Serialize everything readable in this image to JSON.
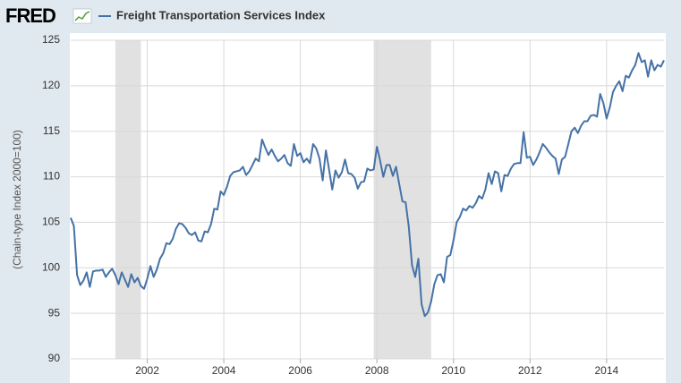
{
  "logo": "FRED",
  "chart_data": {
    "type": "line",
    "y_label": "(Chain-type Index 2000=100)",
    "x": [
      2000,
      2000.083,
      2000.167,
      2000.25,
      2000.333,
      2000.417,
      2000.5,
      2000.583,
      2000.667,
      2000.75,
      2000.833,
      2000.917,
      2001,
      2001.083,
      2001.167,
      2001.25,
      2001.333,
      2001.417,
      2001.5,
      2001.583,
      2001.667,
      2001.75,
      2001.833,
      2001.917,
      2002,
      2002.083,
      2002.167,
      2002.25,
      2002.333,
      2002.417,
      2002.5,
      2002.583,
      2002.667,
      2002.75,
      2002.833,
      2002.917,
      2003,
      2003.083,
      2003.167,
      2003.25,
      2003.333,
      2003.417,
      2003.5,
      2003.583,
      2003.667,
      2003.75,
      2003.833,
      2003.917,
      2004,
      2004.083,
      2004.167,
      2004.25,
      2004.333,
      2004.417,
      2004.5,
      2004.583,
      2004.667,
      2004.75,
      2004.833,
      2004.917,
      2005,
      2005.083,
      2005.167,
      2005.25,
      2005.333,
      2005.417,
      2005.5,
      2005.583,
      2005.667,
      2005.75,
      2005.833,
      2005.917,
      2006,
      2006.083,
      2006.167,
      2006.25,
      2006.333,
      2006.417,
      2006.5,
      2006.583,
      2006.667,
      2006.75,
      2006.833,
      2006.917,
      2007,
      2007.083,
      2007.167,
      2007.25,
      2007.333,
      2007.417,
      2007.5,
      2007.583,
      2007.667,
      2007.75,
      2007.833,
      2007.917,
      2008,
      2008.083,
      2008.167,
      2008.25,
      2008.333,
      2008.417,
      2008.5,
      2008.583,
      2008.667,
      2008.75,
      2008.833,
      2008.917,
      2009,
      2009.083,
      2009.167,
      2009.25,
      2009.333,
      2009.417,
      2009.5,
      2009.583,
      2009.667,
      2009.75,
      2009.833,
      2009.917,
      2010,
      2010.083,
      2010.167,
      2010.25,
      2010.333,
      2010.417,
      2010.5,
      2010.583,
      2010.667,
      2010.75,
      2010.833,
      2010.917,
      2011,
      2011.083,
      2011.167,
      2011.25,
      2011.333,
      2011.417,
      2011.5,
      2011.583,
      2011.667,
      2011.75,
      2011.833,
      2011.917,
      2012,
      2012.083,
      2012.167,
      2012.25,
      2012.333,
      2012.417,
      2012.5,
      2012.583,
      2012.667,
      2012.75,
      2012.833,
      2012.917,
      2013,
      2013.083,
      2013.167,
      2013.25,
      2013.333,
      2013.417,
      2013.5,
      2013.583,
      2013.667,
      2013.75,
      2013.833,
      2013.917,
      2014,
      2014.083,
      2014.167,
      2014.25,
      2014.333,
      2014.417,
      2014.5,
      2014.583,
      2014.667,
      2014.75,
      2014.833,
      2014.917,
      2015,
      2015.083,
      2015.167,
      2015.25,
      2015.333,
      2015.417,
      2015.5
    ],
    "series": [
      {
        "name": "Freight Transportation Services Index",
        "color": "#4572a7",
        "values": [
          105.5,
          104.6,
          99.2,
          98.1,
          98.6,
          99.5,
          97.9,
          99.6,
          99.7,
          99.7,
          99.8,
          99.0,
          99.5,
          99.9,
          99.2,
          98.2,
          99.5,
          98.7,
          97.9,
          99.3,
          98.4,
          98.9,
          98.0,
          97.7,
          98.8,
          100.2,
          99.0,
          99.8,
          101.0,
          101.6,
          102.7,
          102.6,
          103.2,
          104.3,
          104.9,
          104.8,
          104.4,
          103.8,
          103.6,
          103.9,
          103.0,
          102.9,
          104.0,
          103.9,
          104.8,
          106.5,
          106.4,
          108.4,
          108.0,
          108.9,
          110.1,
          110.5,
          110.6,
          110.7,
          111.1,
          110.2,
          110.6,
          111.3,
          112.0,
          111.7,
          114.1,
          113.2,
          112.4,
          113.0,
          112.3,
          111.7,
          112.0,
          112.4,
          111.5,
          111.2,
          113.6,
          112.3,
          112.6,
          111.6,
          112.0,
          111.5,
          113.6,
          113.1,
          112.0,
          109.6,
          112.9,
          110.8,
          108.6,
          110.7,
          109.9,
          110.5,
          111.9,
          110.4,
          110.3,
          109.9,
          108.7,
          109.4,
          109.5,
          110.9,
          110.7,
          110.8,
          113.3,
          111.8,
          110.0,
          111.3,
          111.3,
          110.1,
          111.1,
          109.2,
          107.3,
          107.2,
          104.5,
          100.3,
          99.0,
          101.0,
          96.0,
          94.7,
          95.1,
          96.3,
          98.2,
          99.2,
          99.3,
          98.4,
          101.2,
          101.4,
          103.0,
          105.0,
          105.6,
          106.5,
          106.3,
          106.8,
          106.6,
          107.1,
          107.9,
          107.6,
          108.6,
          110.4,
          109.2,
          110.6,
          110.4,
          108.4,
          110.2,
          110.1,
          110.9,
          111.4,
          111.5,
          111.5,
          114.9,
          112.1,
          112.2,
          111.3,
          111.9,
          112.7,
          113.6,
          113.2,
          112.7,
          112.3,
          112.0,
          110.3,
          111.9,
          112.2,
          113.6,
          115.0,
          115.4,
          114.8,
          115.6,
          116.1,
          116.1,
          116.7,
          116.8,
          116.6,
          119.1,
          118.1,
          116.4,
          117.6,
          119.3,
          120.0,
          120.5,
          119.4,
          121.1,
          120.9,
          121.7,
          122.3,
          123.6,
          122.6,
          122.8,
          121.0,
          122.8,
          121.7,
          122.3,
          122.1,
          122.8
        ]
      }
    ],
    "shaded_periods": [
      [
        2001.167,
        2001.833
      ],
      [
        2007.917,
        2009.417
      ]
    ],
    "shade_color": "#e1e1e1",
    "xlim": [
      2000,
      2015.5
    ],
    "xticks": [
      2002,
      2004,
      2006,
      2008,
      2010,
      2012,
      2014
    ],
    "ylim": [
      90,
      125
    ],
    "yticks": [
      90,
      95,
      100,
      105,
      110,
      115,
      120,
      125
    ],
    "grid": true
  }
}
